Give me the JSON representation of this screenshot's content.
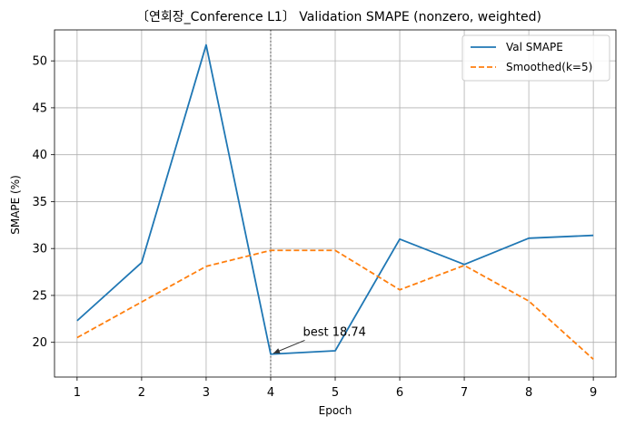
{
  "chart_data": {
    "type": "line",
    "title": "〔연회장_Conference L1〕 Validation SMAPE (nonzero, weighted)",
    "xlabel": "Epoch",
    "ylabel": "SMAPE (%)",
    "x": [
      1,
      2,
      3,
      4,
      5,
      6,
      7,
      8,
      9
    ],
    "xlim": [
      0.65,
      9.35
    ],
    "ylim": [
      16.3,
      53.3
    ],
    "xticks": [
      "1",
      "2",
      "3",
      "4",
      "5",
      "6",
      "7",
      "8",
      "9"
    ],
    "yticks": [
      "20",
      "25",
      "30",
      "35",
      "40",
      "45",
      "50"
    ],
    "grid": true,
    "legend_position": "top-right",
    "series": [
      {
        "name": "Val SMAPE",
        "style": "solid",
        "color": "#1f77b4",
        "values": [
          22.3,
          28.5,
          51.7,
          18.74,
          19.1,
          31.0,
          28.3,
          31.1,
          31.4
        ]
      },
      {
        "name": "Smoothed(k=5)",
        "style": "dashed",
        "color": "#ff7f0e",
        "values": [
          20.5,
          24.3,
          28.1,
          29.8,
          29.8,
          25.6,
          28.2,
          24.4,
          18.2
        ]
      }
    ],
    "vline": {
      "x": 4,
      "color": "#808080",
      "style": "dotted"
    },
    "annotation": {
      "text": "best 18.74",
      "x": 4,
      "y": 18.74,
      "text_x": 4.5,
      "text_y": 20.7
    }
  }
}
